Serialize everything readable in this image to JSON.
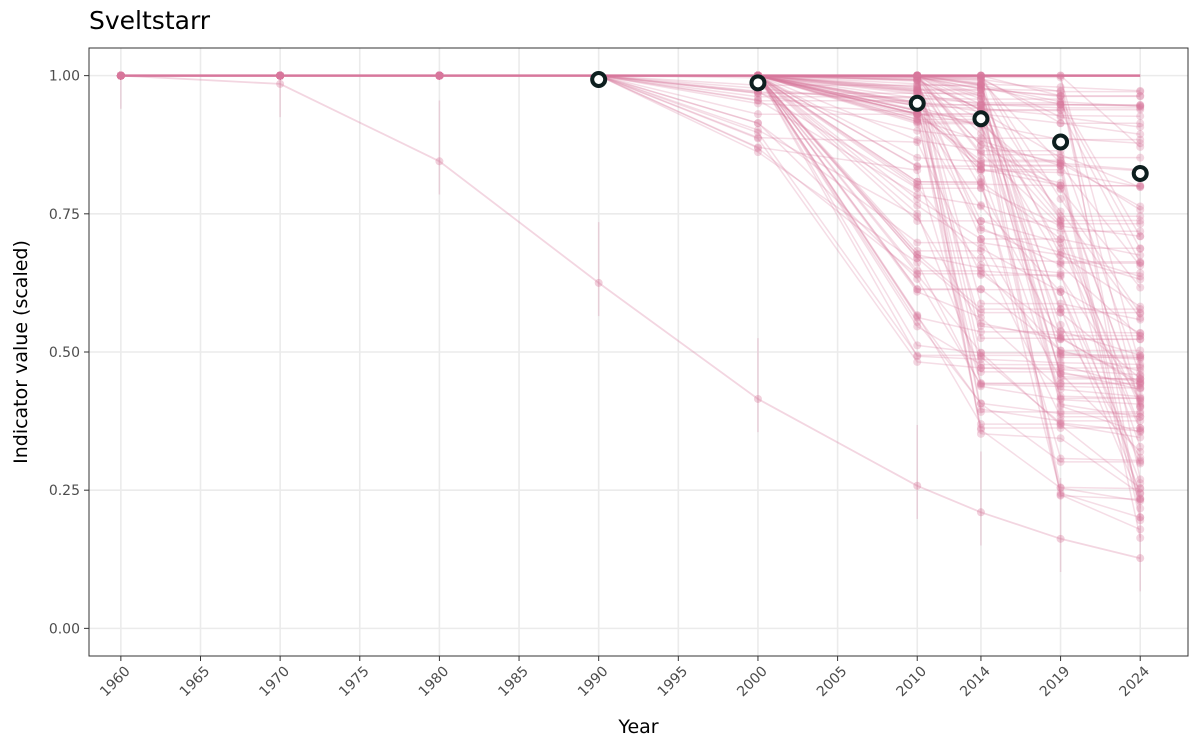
{
  "chart_data": {
    "type": "line",
    "title": "Sveltstarr",
    "xlabel": "Year",
    "ylabel": "Indicator value (scaled)",
    "x_ticks": [
      1960,
      1965,
      1970,
      1975,
      1980,
      1985,
      1990,
      1995,
      2000,
      2005,
      2010,
      2014,
      2019,
      2024
    ],
    "y_ticks": [
      0.0,
      0.25,
      0.5,
      0.75,
      1.0
    ],
    "y_tick_labels": [
      "0.00",
      "0.25",
      "0.50",
      "0.75",
      "1.00"
    ],
    "xlim": [
      1958,
      2027
    ],
    "ylim": [
      -0.05,
      1.05
    ],
    "grid": true,
    "sample_years": [
      1960,
      1970,
      1980,
      1990,
      2000,
      2010,
      2014,
      2019,
      2024
    ],
    "mean_series": {
      "x": [
        1990,
        2000,
        2010,
        2014,
        2019,
        2024
      ],
      "y": [
        0.993,
        0.987,
        0.95,
        0.922,
        0.88,
        0.823
      ]
    },
    "outlier_series": {
      "x": [
        1960,
        1970,
        1980,
        1990,
        2000,
        2010,
        2014,
        2019,
        2024
      ],
      "y": [
        1.0,
        0.985,
        0.845,
        0.625,
        0.415,
        0.258,
        0.21,
        0.162,
        0.127
      ]
    },
    "simulation_count": 120,
    "colors": {
      "series": "#d7779c",
      "mean_fill": "#ffffff",
      "mean_stroke": "#0d1f1f",
      "grid": "#ebebeb",
      "panel_border": "#333333"
    }
  }
}
